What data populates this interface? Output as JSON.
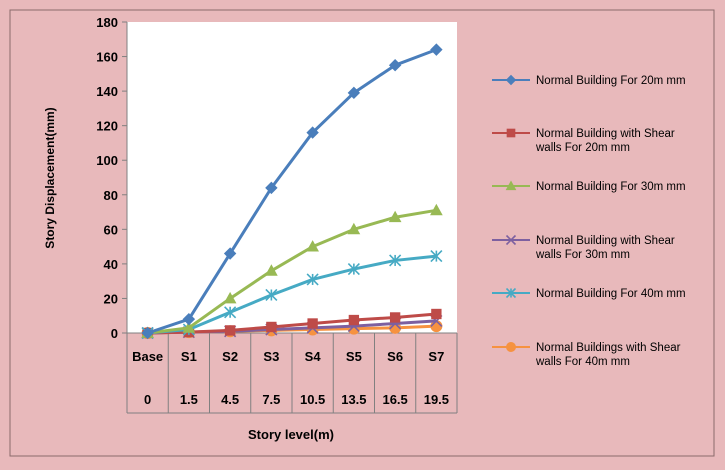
{
  "chart_data": {
    "type": "line",
    "title": "",
    "ylabel": "Story Displacement(mm)",
    "xlabel": "Story level(m)",
    "ylim": [
      0,
      180
    ],
    "yticks": [
      0,
      20,
      40,
      60,
      80,
      100,
      120,
      140,
      160,
      180
    ],
    "categories": [
      "Base",
      "S1",
      "S2",
      "S3",
      "S4",
      "S5",
      "S6",
      "S7"
    ],
    "categories_row2": [
      "0",
      "1.5",
      "4.5",
      "7.5",
      "10.5",
      "13.5",
      "16.5",
      "19.5"
    ],
    "grid": false,
    "legend_position": "right",
    "series": [
      {
        "name": "Normal Building  For 20m mm",
        "color": "#4a7ebb",
        "marker": "diamond",
        "values": [
          0,
          8,
          46,
          84,
          116,
          139,
          155,
          164
        ]
      },
      {
        "name": "Normal Building with Shear walls  For 20m mm",
        "color": "#be4b48",
        "marker": "square",
        "values": [
          0,
          0.5,
          1.5,
          3.5,
          5.5,
          7.5,
          9,
          11
        ]
      },
      {
        "name": "Normal Building  For 30m mm",
        "color": "#98b954",
        "marker": "triangle",
        "values": [
          0,
          3,
          20,
          36,
          50,
          60,
          67,
          71
        ]
      },
      {
        "name": "Normal Building with Shear walls For 30m mm",
        "color": "#7d60a0",
        "marker": "x",
        "values": [
          0,
          0.5,
          1,
          2,
          3,
          4,
          5.5,
          7
        ]
      },
      {
        "name": "Normal Building For 40m mm",
        "color": "#46aac4",
        "marker": "star",
        "values": [
          0,
          2,
          12,
          22,
          31,
          37,
          42,
          44.5
        ]
      },
      {
        "name": "Normal Buildings with Shear walls For 40m mm",
        "color": "#f69240",
        "marker": "circle",
        "values": [
          0,
          0.5,
          1,
          1.5,
          2,
          2.5,
          3,
          4
        ]
      }
    ]
  }
}
